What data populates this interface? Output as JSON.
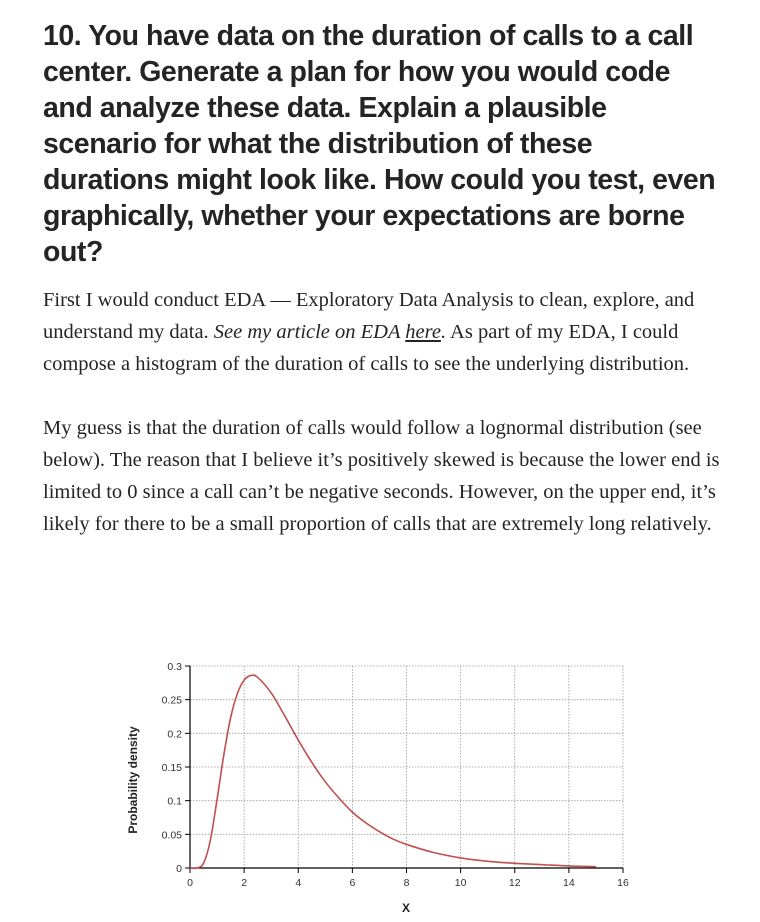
{
  "heading": "10. You have data on the duration of calls to a call center. Generate a plan for how you would code and analyze these data. Explain a plausible scenario for what the distribution of these durations might look like. How could you test, even graphically, whether your expectations are borne out?",
  "para1": {
    "text1": "First I would conduct EDA — Exploratory Data Analysis to clean, explore, and understand my data. ",
    "italic": "See my article on EDA ",
    "link": "here",
    "italic_end": ".",
    "text2": " As part of my EDA, I could compose a histogram of the duration of calls to see the underlying distribution."
  },
  "para2": "My guess is that the duration of calls would follow a lognormal distribution (see below). The reason that I believe it’s positively skewed is because the lower end is limited to 0 since a call can’t be negative seconds. However, on the upper end, it’s likely for there to be a small proportion of calls that are extremely long relatively.",
  "chart_data": {
    "type": "line",
    "xlabel": "X",
    "ylabel": "Probability density",
    "xlim": [
      0,
      16
    ],
    "ylim": [
      0,
      0.3
    ],
    "x_ticks": [
      "0",
      "2",
      "4",
      "6",
      "8",
      "10",
      "12",
      "14",
      "16"
    ],
    "y_ticks": [
      "0",
      "0.05",
      "0.1",
      "0.15",
      "0.2",
      "0.25",
      "0.3"
    ],
    "grid": true,
    "series": [
      {
        "color": "#c0504d",
        "x": [
          0,
          0.25,
          0.5,
          0.75,
          1,
          1.25,
          1.5,
          1.75,
          2,
          2.25,
          2.5,
          3,
          3.5,
          4,
          4.5,
          5,
          5.5,
          6,
          6.5,
          7,
          7.5,
          8,
          9,
          10,
          11,
          12,
          13,
          14,
          15
        ],
        "y": [
          0,
          0.0001,
          0.007,
          0.041,
          0.102,
          0.168,
          0.223,
          0.259,
          0.279,
          0.286,
          0.283,
          0.26,
          0.226,
          0.19,
          0.157,
          0.128,
          0.104,
          0.083,
          0.067,
          0.054,
          0.043,
          0.035,
          0.023,
          0.015,
          0.01,
          0.007,
          0.005,
          0.003,
          0.002
        ]
      }
    ]
  }
}
